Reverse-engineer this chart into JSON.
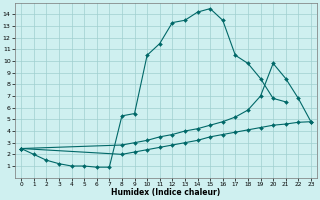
{
  "xlabel": "Humidex (Indice chaleur)",
  "bg_color": "#cff0f0",
  "grid_color": "#a0d0d0",
  "line_color": "#006868",
  "line1_x": [
    0,
    1,
    2,
    3,
    4,
    5,
    6,
    7,
    8,
    9,
    10,
    11,
    12,
    13,
    14,
    15,
    16,
    17,
    18,
    19,
    20,
    21
  ],
  "line1_y": [
    2.5,
    2.0,
    1.5,
    1.2,
    1.0,
    1.0,
    0.9,
    0.9,
    5.3,
    5.5,
    10.5,
    11.5,
    13.3,
    13.5,
    14.2,
    14.5,
    13.5,
    10.5,
    9.8,
    8.5,
    6.8,
    6.5
  ],
  "line2_x": [
    0,
    8,
    9,
    10,
    11,
    12,
    13,
    14,
    15,
    16,
    17,
    18,
    19,
    20,
    21,
    22,
    23
  ],
  "line2_y": [
    2.5,
    2.8,
    3.0,
    3.2,
    3.5,
    3.7,
    4.0,
    4.2,
    4.5,
    4.8,
    5.2,
    5.8,
    7.0,
    9.8,
    8.5,
    6.8,
    4.8
  ],
  "line3_x": [
    0,
    8,
    9,
    10,
    11,
    12,
    13,
    14,
    15,
    16,
    17,
    18,
    19,
    20,
    21,
    22,
    23
  ],
  "line3_y": [
    2.5,
    2.0,
    2.2,
    2.4,
    2.6,
    2.8,
    3.0,
    3.2,
    3.5,
    3.7,
    3.9,
    4.1,
    4.3,
    4.5,
    4.6,
    4.75,
    4.8
  ],
  "xlim": [
    -0.5,
    23.5
  ],
  "ylim": [
    0,
    15
  ],
  "xticks": [
    0,
    1,
    2,
    3,
    4,
    5,
    6,
    7,
    8,
    9,
    10,
    11,
    12,
    13,
    14,
    15,
    16,
    17,
    18,
    19,
    20,
    21,
    22,
    23
  ],
  "yticks": [
    1,
    2,
    3,
    4,
    5,
    6,
    7,
    8,
    9,
    10,
    11,
    12,
    13,
    14
  ]
}
